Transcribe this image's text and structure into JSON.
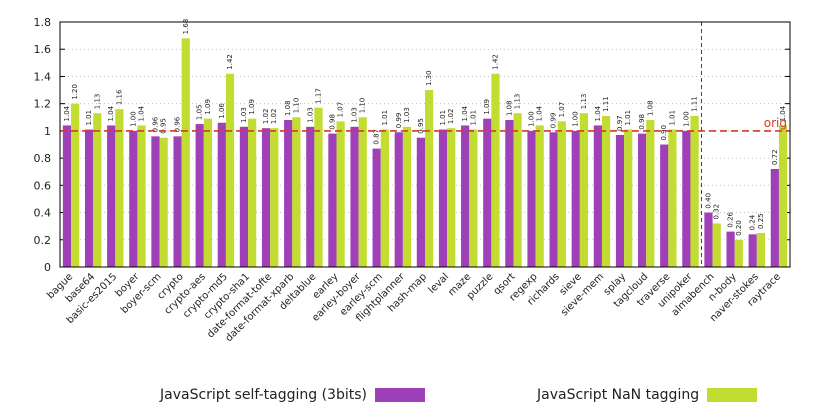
{
  "chart_data": {
    "type": "bar",
    "categories": [
      "bague",
      "base64",
      "basic-es2015",
      "boyer",
      "boyer-scm",
      "crypto",
      "crypto-aes",
      "crypto-md5",
      "crypto-sha1",
      "date-format-tofte",
      "date-format-xparb",
      "deltablue",
      "earley",
      "earley-boyer",
      "earley-scm",
      "flightplanner",
      "hash-map",
      "leval",
      "maze",
      "puzzle",
      "qsort",
      "regexp",
      "richards",
      "sieve",
      "sieve-mem",
      "splay",
      "tagcloud",
      "traverse",
      "unipoker",
      "almabench",
      "n-body",
      "naver-stokes",
      "raytrace"
    ],
    "series": [
      {
        "name": "JavaScript self-tagging (3bits)",
        "color": "#a040b8",
        "values": [
          1.04,
          1.01,
          1.04,
          1.0,
          0.96,
          0.96,
          1.05,
          1.06,
          1.03,
          1.02,
          1.08,
          1.03,
          0.98,
          1.03,
          0.87,
          0.99,
          0.95,
          1.01,
          1.04,
          1.09,
          1.08,
          1.0,
          0.99,
          1.0,
          1.04,
          0.97,
          0.98,
          0.9,
          1.0,
          0.4,
          0.26,
          0.24,
          0.72
        ],
        "labels": [
          "1.04",
          "1.01",
          "1.04",
          "1.00",
          "0.96",
          "0.96",
          "1.05",
          "1.06",
          "1.03",
          "1.02",
          "1.08",
          "1.03",
          "0.98",
          "1.03",
          "0.87",
          "0.99",
          "0.95",
          "1.01",
          "1.04",
          "1.09",
          "1.08",
          "1.00",
          "0.99",
          "1.00",
          "1.04",
          "0.97",
          "0.98",
          "0.90",
          "1.00",
          "0.40",
          "0.26",
          "0.24",
          "0.72"
        ]
      },
      {
        "name": "JavaScript NaN tagging",
        "color": "#c3dc32",
        "values": [
          1.2,
          1.13,
          1.16,
          1.04,
          0.95,
          1.68,
          1.09,
          1.42,
          1.09,
          1.02,
          1.1,
          1.17,
          1.07,
          1.1,
          1.01,
          1.03,
          1.3,
          1.02,
          1.01,
          1.42,
          1.13,
          1.04,
          1.07,
          1.13,
          1.11,
          1.01,
          1.08,
          1.01,
          1.11,
          0.32,
          0.2,
          0.25,
          1.04
        ],
        "labels": [
          "1.20",
          "1.13",
          "1.16",
          "1.04",
          "0.95",
          "1.68",
          "1.09",
          "1.42",
          "1.09",
          "1.02",
          "1.10",
          "1.17",
          "1.07",
          "1.10",
          "1.01",
          "1.03",
          "1.30",
          "1.02",
          "1.01",
          "1.42",
          "1.13",
          "1.04",
          "1.07",
          "1.13",
          "1.11",
          "1.01",
          "1.08",
          "1.01",
          "1.11",
          "0.32",
          "0.20",
          "0.25",
          "1.04"
        ]
      }
    ],
    "yticks": [
      "0",
      "0.2",
      "0.4",
      "0.6",
      "0.8",
      "1",
      "1.2",
      "1.4",
      "1.6",
      "1.8"
    ],
    "ylim": [
      0,
      1.8
    ],
    "reference_line": {
      "value": 1.0,
      "label": "orig",
      "color": "#d23c28"
    },
    "separator_after_category": "unipoker",
    "grid": "dotted horizontal",
    "legend_position": "bottom"
  }
}
